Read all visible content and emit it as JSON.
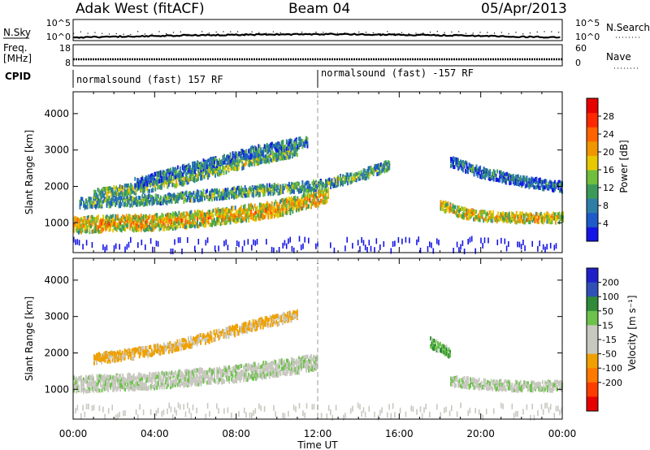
{
  "header": {
    "station": "Adak West (fitACF)",
    "beam": "Beam 04",
    "date": "05/Apr/2013"
  },
  "strips": {
    "nsky_label": "N.Sky",
    "nsky_ticks": [
      "10^5",
      "10^0"
    ],
    "nsky_right_ticks": [
      "10^5",
      "10^0"
    ],
    "nsearch_label": "N.Search",
    "freq_label": "Freq.",
    "freq_unit": "[MHz]",
    "freq_ticks": [
      "18",
      "8"
    ],
    "nave_label": "Nave",
    "nave_ticks": [
      "60",
      "0"
    ],
    "cpid_label": "CPID",
    "cpid_segments": [
      {
        "label": "normalsound (fast) 157 RF",
        "start_hour": 0
      },
      {
        "label": "normalsound (fast) -157 RF",
        "start_hour": 12
      }
    ]
  },
  "colors": {
    "power": [
      "#1414e6",
      "#1e5ac8",
      "#2e7ea8",
      "#3b9a5a",
      "#6fbe3c",
      "#e8c800",
      "#f09600",
      "#ff6400",
      "#ff2800",
      "#e60000"
    ],
    "velocity": [
      "#2020c8",
      "#3050b8",
      "#2f8a3a",
      "#6cc24a",
      "#c8c8c0",
      "#c8c8c0",
      "#f0a000",
      "#ff7800",
      "#ff3c00",
      "#e60000"
    ],
    "ground": "#c8c8c0"
  },
  "chart_data": [
    {
      "type": "heatmap",
      "name": "power-panel",
      "x_range_hours": [
        0,
        24
      ],
      "ylabel": "Slant Range [km]",
      "ylim": [
        180,
        4600
      ],
      "y_ticks": [
        1000,
        2000,
        3000,
        4000
      ],
      "colorbar_label": "Power [dB]",
      "colorbar_range": [
        0,
        32
      ],
      "colorbar_ticks": [
        4,
        8,
        12,
        16,
        20,
        24,
        28
      ],
      "bands": [
        {
          "hours": [
            0,
            0.5,
            2,
            4,
            6,
            7,
            8,
            10,
            11,
            12,
            12.5
          ],
          "center_km": [
            950,
            970,
            1000,
            1030,
            1120,
            1180,
            1250,
            1400,
            1550,
            1700,
            1800
          ],
          "power_db": 20
        },
        {
          "hours": [
            0.3,
            2,
            4,
            6,
            8,
            10,
            12,
            14,
            15.5
          ],
          "center_km": [
            1550,
            1600,
            1650,
            1750,
            1850,
            1950,
            2050,
            2300,
            2600
          ],
          "power_db": 12
        },
        {
          "hours": [
            1,
            3,
            5,
            7,
            9,
            11
          ],
          "center_km": [
            1800,
            1950,
            2150,
            2450,
            2750,
            3000
          ],
          "power_db": 14
        },
        {
          "hours": [
            3,
            5,
            7,
            9,
            11.5
          ],
          "center_km": [
            2100,
            2400,
            2700,
            3000,
            3250
          ],
          "power_db": 9
        },
        {
          "hours": [
            18,
            19,
            20,
            22,
            24
          ],
          "center_km": [
            1500,
            1300,
            1200,
            1150,
            1150
          ],
          "power_db": 18
        },
        {
          "hours": [
            18.5,
            20,
            22,
            24
          ],
          "center_km": [
            2700,
            2400,
            2150,
            2000
          ],
          "power_db": 8
        }
      ]
    },
    {
      "type": "heatmap",
      "name": "velocity-panel",
      "x_range_hours": [
        0,
        24
      ],
      "xlabel": "Time UT",
      "x_ticks": [
        "00:00",
        "04:00",
        "08:00",
        "12:00",
        "16:00",
        "20:00",
        "00:00"
      ],
      "ylabel": "Slant Range [km]",
      "ylim": [
        180,
        4600
      ],
      "y_ticks": [
        1000,
        2000,
        3000,
        4000
      ],
      "colorbar_label": "Velocity [m s⁻¹]",
      "colorbar_ticks": [
        "200",
        "100",
        "50",
        "15",
        "-15",
        "-50",
        "-100",
        "-200"
      ],
      "bands": [
        {
          "hours": [
            0,
            2,
            4,
            6,
            8,
            10,
            12
          ],
          "center_km": [
            1150,
            1200,
            1250,
            1350,
            1450,
            1600,
            1750
          ],
          "velocity": 0
        },
        {
          "hours": [
            1,
            3,
            5,
            7,
            9,
            11
          ],
          "center_km": [
            1850,
            2000,
            2200,
            2500,
            2800,
            3050
          ],
          "velocity": -60
        },
        {
          "hours": [
            18.5,
            20,
            22,
            24
          ],
          "center_km": [
            1250,
            1150,
            1100,
            1100
          ],
          "velocity": 0
        },
        {
          "hours": [
            17.5,
            18.5
          ],
          "center_km": [
            2300,
            2000
          ],
          "velocity": 40
        }
      ]
    }
  ]
}
